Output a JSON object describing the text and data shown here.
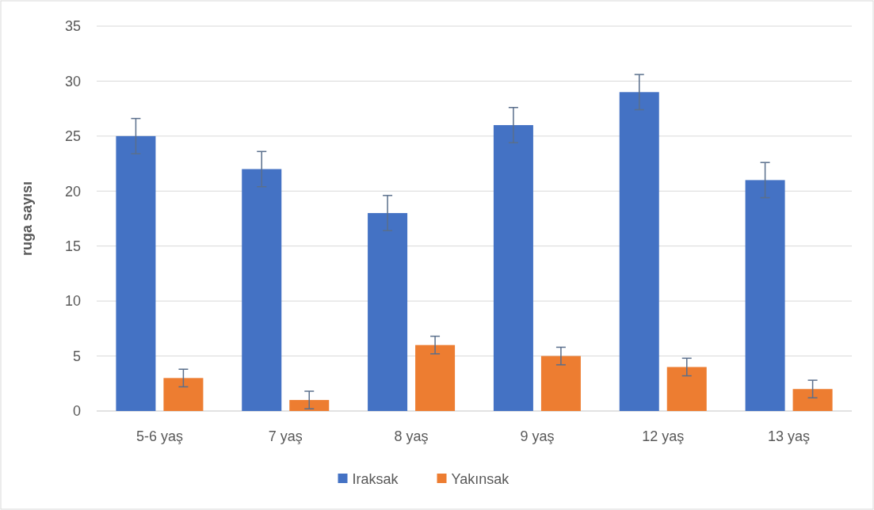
{
  "chart_data": {
    "type": "bar",
    "ylabel": "ruga sayısı",
    "categories": [
      "5-6 yaş",
      "7 yaş",
      "8 yaş",
      "9 yaş",
      "12 yaş",
      "13 yaş"
    ],
    "series": [
      {
        "name": "Iraksak",
        "color": "#4472c4",
        "values": [
          25,
          22,
          18,
          26,
          29,
          21
        ],
        "errors": [
          1.6,
          1.6,
          1.6,
          1.6,
          1.6,
          1.6
        ]
      },
      {
        "name": "Yakınsak",
        "color": "#ed7d31",
        "values": [
          3,
          1,
          6,
          5,
          4,
          2
        ],
        "errors": [
          0.8,
          0.8,
          0.8,
          0.8,
          0.8,
          0.8
        ]
      }
    ],
    "ylim": [
      0,
      35
    ],
    "yticks": [
      0,
      5,
      10,
      15,
      20,
      25,
      30,
      35
    ],
    "grid": "y",
    "legend": "bottom"
  }
}
